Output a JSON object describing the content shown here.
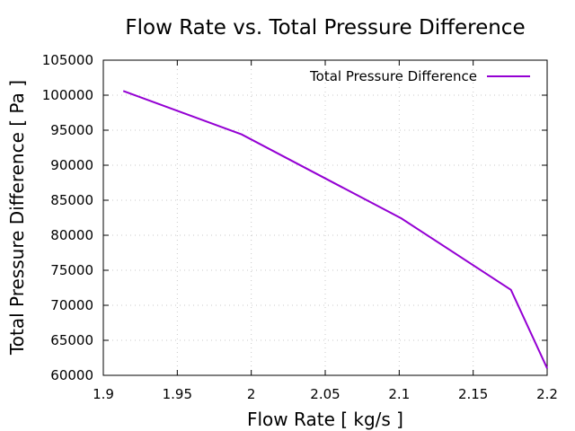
{
  "chart_data": {
    "type": "line",
    "title": "Flow Rate vs. Total Pressure Difference",
    "xlabel": "Flow Rate [ kg/s ]",
    "ylabel": "Total Pressure Difference [ Pa ]",
    "xlim": [
      1.9,
      2.2
    ],
    "ylim": [
      60000,
      105000
    ],
    "xticks": [
      1.9,
      1.95,
      2.0,
      2.05,
      2.1,
      2.15,
      2.2
    ],
    "xtick_labels": [
      "1.9",
      "1.95",
      "2",
      "2.05",
      "2.1",
      "2.15",
      "2.2"
    ],
    "yticks": [
      60000,
      65000,
      70000,
      75000,
      80000,
      85000,
      90000,
      95000,
      100000,
      105000
    ],
    "ytick_labels": [
      "60000",
      "65000",
      "70000",
      "75000",
      "80000",
      "85000",
      "90000",
      "95000",
      "100000",
      "105000"
    ],
    "grid": true,
    "legend_position": "top-right",
    "series": [
      {
        "name": "Total Pressure Difference",
        "color": "#9400d3",
        "x": [
          1.9135,
          1.9935,
          2.1015,
          2.1755,
          2.2
        ],
        "y": [
          100600,
          94400,
          82400,
          72200,
          61000
        ]
      }
    ]
  }
}
